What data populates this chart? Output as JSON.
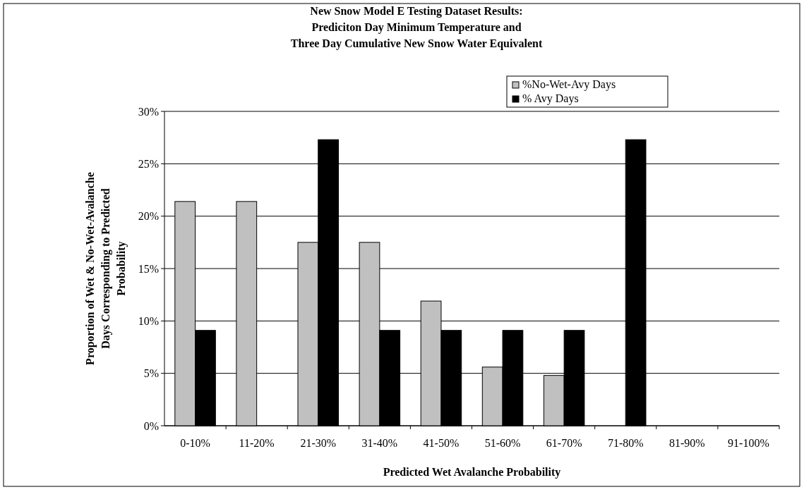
{
  "chart_data": {
    "type": "bar",
    "title": "New Snow Model E Testing Dataset Results:\nPrediciton Day Minimum Temperature and\nThree Day Cumulative New Snow Water Equivalent",
    "xlabel": "Predicted Wet Avalanche Probability",
    "ylabel": "Proportion of Wet & No-Wet-Avalanche\nDays Corresponding to Predicted\nProbability",
    "categories": [
      "0-10%",
      "11-20%",
      "21-30%",
      "31-40%",
      "41-50%",
      "51-60%",
      "61-70%",
      "71-80%",
      "81-90%",
      "91-100%"
    ],
    "series": [
      {
        "name": "%No-Wet-Avy Days",
        "color": "#c0c0c0",
        "values": [
          21.4,
          21.4,
          17.5,
          17.5,
          11.9,
          5.6,
          4.8,
          0,
          0,
          0
        ]
      },
      {
        "name": "% Avy Days",
        "color": "#000000",
        "values": [
          9.1,
          0,
          27.3,
          9.1,
          9.1,
          9.1,
          9.1,
          27.3,
          0,
          0
        ]
      }
    ],
    "ylim": [
      0,
      30
    ],
    "yticks": [
      {
        "value": 0,
        "label": "0%"
      },
      {
        "value": 5,
        "label": "5%"
      },
      {
        "value": 10,
        "label": "10%"
      },
      {
        "value": 15,
        "label": "15%"
      },
      {
        "value": 20,
        "label": "20%"
      },
      {
        "value": 25,
        "label": "25%"
      },
      {
        "value": 30,
        "label": "30%"
      }
    ],
    "grid": "y",
    "legend": "top right"
  }
}
